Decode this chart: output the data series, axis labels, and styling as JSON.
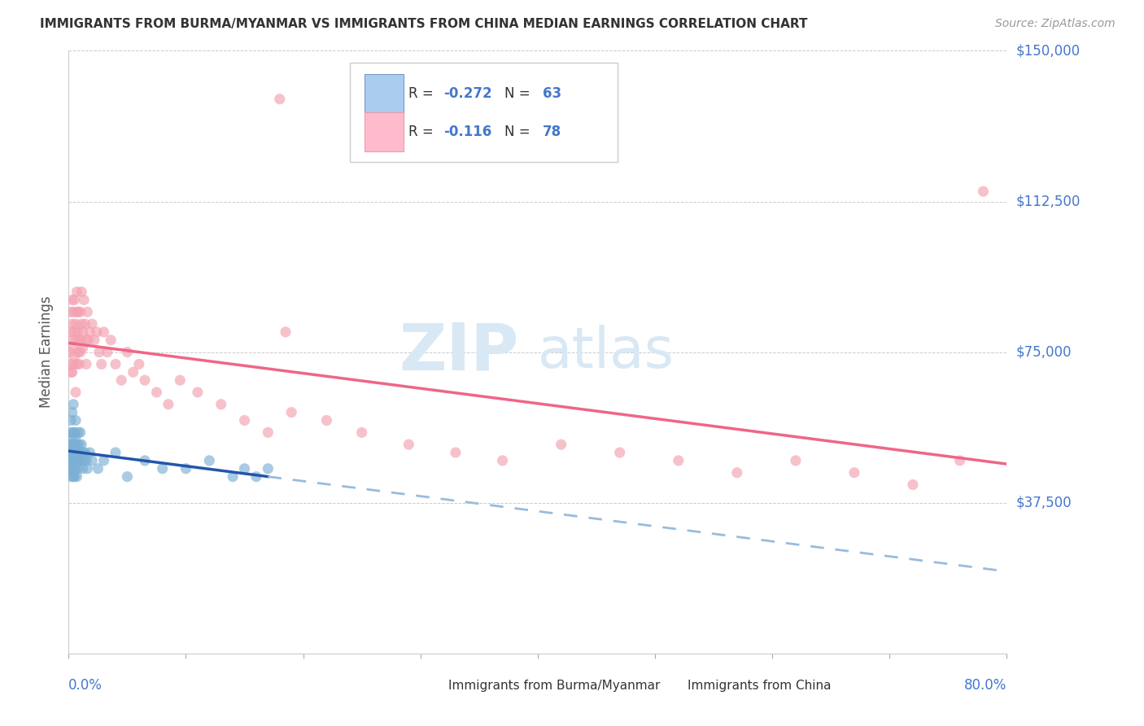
{
  "title": "IMMIGRANTS FROM BURMA/MYANMAR VS IMMIGRANTS FROM CHINA MEDIAN EARNINGS CORRELATION CHART",
  "source": "Source: ZipAtlas.com",
  "ylabel": "Median Earnings",
  "xmin": 0.0,
  "xmax": 0.8,
  "ymin": 0,
  "ymax": 150000,
  "ytick_positions": [
    0,
    37500,
    75000,
    112500,
    150000
  ],
  "ytick_labels": [
    "",
    "$37,500",
    "$75,000",
    "$112,500",
    "$150,000"
  ],
  "color_burma": "#7BAFD4",
  "color_china": "#F4A0B0",
  "color_blue": "#4477CC",
  "color_trendline_burma": "#2255AA",
  "color_trendline_china": "#EE6688",
  "color_trendline_dash": "#99BBDD",
  "color_grid": "#CCCCCC",
  "legend_texts": [
    "R = -0.272   N = 63",
    "R =  -0.116   N = 78"
  ],
  "watermark_zip": "ZIP",
  "watermark_atlas": "atlas",
  "watermark_color": "#D8E8F5",
  "title_fontsize": 11,
  "source_fontsize": 10,
  "scatter_size": 90,
  "scatter_alpha": 0.65,
  "burma_x": [
    0.001,
    0.001,
    0.001,
    0.001,
    0.002,
    0.002,
    0.002,
    0.002,
    0.002,
    0.002,
    0.003,
    0.003,
    0.003,
    0.003,
    0.003,
    0.004,
    0.004,
    0.004,
    0.004,
    0.004,
    0.004,
    0.005,
    0.005,
    0.005,
    0.005,
    0.005,
    0.006,
    0.006,
    0.006,
    0.006,
    0.007,
    0.007,
    0.007,
    0.007,
    0.008,
    0.008,
    0.008,
    0.009,
    0.009,
    0.01,
    0.01,
    0.011,
    0.011,
    0.012,
    0.012,
    0.013,
    0.014,
    0.015,
    0.016,
    0.018,
    0.02,
    0.025,
    0.03,
    0.04,
    0.05,
    0.065,
    0.08,
    0.1,
    0.12,
    0.14,
    0.15,
    0.16,
    0.17
  ],
  "burma_y": [
    50000,
    48000,
    52000,
    46000,
    55000,
    50000,
    48000,
    52000,
    44000,
    58000,
    60000,
    50000,
    46000,
    54000,
    48000,
    55000,
    50000,
    46000,
    62000,
    52000,
    44000,
    55000,
    50000,
    48000,
    44000,
    52000,
    58000,
    50000,
    46000,
    54000,
    52000,
    50000,
    48000,
    44000,
    55000,
    50000,
    46000,
    52000,
    48000,
    55000,
    50000,
    52000,
    48000,
    50000,
    46000,
    48000,
    50000,
    48000,
    46000,
    50000,
    48000,
    46000,
    48000,
    50000,
    44000,
    48000,
    46000,
    46000,
    48000,
    44000,
    46000,
    44000,
    46000
  ],
  "china_x": [
    0.001,
    0.001,
    0.002,
    0.002,
    0.002,
    0.003,
    0.003,
    0.003,
    0.003,
    0.004,
    0.004,
    0.004,
    0.005,
    0.005,
    0.005,
    0.006,
    0.006,
    0.006,
    0.007,
    0.007,
    0.007,
    0.008,
    0.008,
    0.008,
    0.009,
    0.009,
    0.01,
    0.01,
    0.01,
    0.011,
    0.011,
    0.012,
    0.012,
    0.013,
    0.014,
    0.015,
    0.015,
    0.016,
    0.017,
    0.018,
    0.02,
    0.022,
    0.024,
    0.026,
    0.028,
    0.03,
    0.033,
    0.036,
    0.04,
    0.045,
    0.05,
    0.055,
    0.06,
    0.065,
    0.075,
    0.085,
    0.095,
    0.11,
    0.13,
    0.15,
    0.17,
    0.19,
    0.22,
    0.25,
    0.29,
    0.33,
    0.37,
    0.42,
    0.47,
    0.52,
    0.57,
    0.62,
    0.67,
    0.72,
    0.76,
    0.78,
    0.18,
    0.185
  ],
  "china_y": [
    75000,
    72000,
    80000,
    70000,
    85000,
    78000,
    82000,
    70000,
    88000,
    76000,
    85000,
    72000,
    80000,
    88000,
    74000,
    82000,
    78000,
    65000,
    85000,
    72000,
    90000,
    80000,
    75000,
    85000,
    78000,
    72000,
    85000,
    78000,
    75000,
    82000,
    90000,
    80000,
    76000,
    88000,
    82000,
    78000,
    72000,
    85000,
    78000,
    80000,
    82000,
    78000,
    80000,
    75000,
    72000,
    80000,
    75000,
    78000,
    72000,
    68000,
    75000,
    70000,
    72000,
    68000,
    65000,
    62000,
    68000,
    65000,
    62000,
    58000,
    55000,
    60000,
    58000,
    55000,
    52000,
    50000,
    48000,
    52000,
    50000,
    48000,
    45000,
    48000,
    45000,
    42000,
    48000,
    115000,
    138000,
    80000
  ]
}
